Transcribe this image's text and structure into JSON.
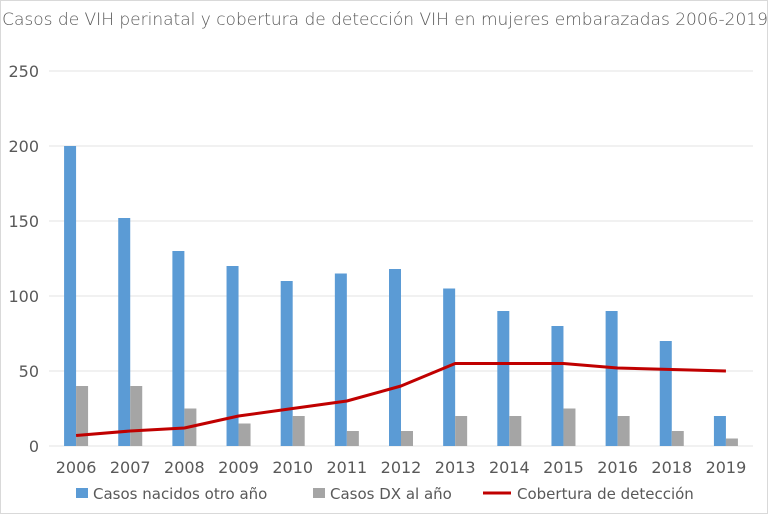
{
  "chart_data": {
    "type": "bar",
    "title": "Casos de VIH perinatal y cobertura de detección VIH en mujeres embarazadas 2006-2019",
    "categories": [
      "2006",
      "2007",
      "2008",
      "2009",
      "2010",
      "2011",
      "2012",
      "2013",
      "2014",
      "2015",
      "2016",
      "2018",
      "2019"
    ],
    "series": [
      {
        "name": "Casos nacidos otro año",
        "type": "bar",
        "color": "#5b9bd5",
        "values": [
          200,
          152,
          130,
          120,
          110,
          115,
          118,
          105,
          90,
          80,
          90,
          70,
          20
        ]
      },
      {
        "name": "Casos DX al año",
        "type": "bar",
        "color": "#a5a5a5",
        "values": [
          40,
          40,
          25,
          15,
          20,
          10,
          10,
          20,
          20,
          25,
          20,
          10,
          5
        ]
      },
      {
        "name": "Cobertura de detección",
        "type": "line",
        "color": "#c00000",
        "values": [
          7,
          10,
          12,
          20,
          25,
          30,
          40,
          55,
          55,
          55,
          52,
          51,
          50
        ]
      }
    ],
    "yticks": [
      "0",
      "50",
      "100",
      "150",
      "200",
      "250"
    ],
    "ylim": [
      0,
      250
    ],
    "grid": true,
    "legend": "bottom"
  }
}
